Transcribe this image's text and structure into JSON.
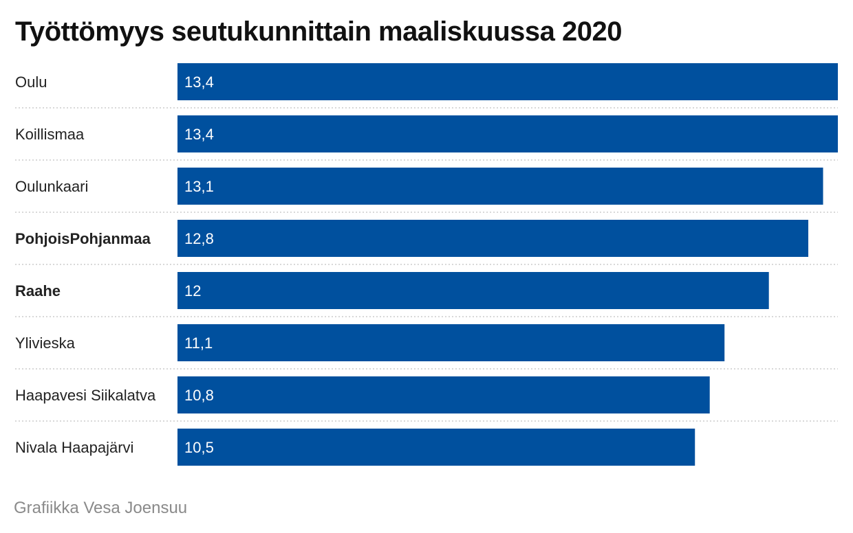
{
  "chart_data": {
    "type": "bar",
    "orientation": "horizontal",
    "title": "Työttömyys seutukunnittain maaliskuussa 2020",
    "categories": [
      "Oulu",
      "Koillismaa",
      "Oulunkaari",
      "PohjoisPohjanmaa",
      "Raahe",
      "Ylivieska",
      "Haapavesi Siikalatva",
      "Nivala Haapajärvi"
    ],
    "values": [
      13.4,
      13.4,
      13.1,
      12.8,
      12,
      11.1,
      10.8,
      10.5
    ],
    "value_labels": [
      "13,4",
      "13,4",
      "13,1",
      "12,8",
      "12",
      "11,1",
      "10,8",
      "10,5"
    ],
    "bold_categories": [
      "PohjoisPohjanmaa",
      "Raahe"
    ],
    "xlim": [
      0,
      13.4
    ],
    "grid": false,
    "bar_color": "#00509e",
    "separator_color": "#cccccc"
  },
  "credit": "Grafiikka Vesa Joensuu"
}
